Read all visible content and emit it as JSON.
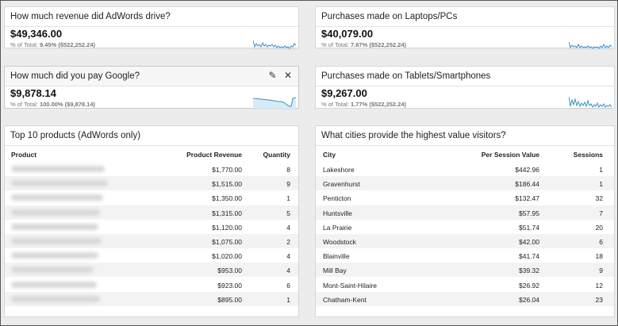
{
  "metrics": [
    {
      "title": "How much revenue did AdWords drive?",
      "value": "$49,346.00",
      "sub_prefix": "% of Total: ",
      "sub_value": "9.45% ($522,252.24)"
    },
    {
      "title": "Purchases made on Laptops/PCs",
      "value": "$40,079.00",
      "sub_prefix": "% of Total: ",
      "sub_value": "7.67% ($522,252.24)"
    },
    {
      "title": "How much did you pay Google?",
      "value": "$9,878.14",
      "sub_prefix": "% of Total: ",
      "sub_value": "100.00% ($9,878.14)",
      "edit_icon": "✎",
      "close_icon": "✕"
    },
    {
      "title": "Purchases made on Tablets/Smartphones",
      "value": "$9,267.00",
      "sub_prefix": "% of Total: ",
      "sub_value": "1.77% ($522,252.24)"
    }
  ],
  "products": {
    "title": "Top 10 products (AdWords only)",
    "headers": {
      "product": "Product",
      "revenue": "Product Revenue",
      "quantity": "Quantity"
    },
    "rows": [
      {
        "revenue": "$1,770.00",
        "quantity": "8"
      },
      {
        "revenue": "$1,515.00",
        "quantity": "9"
      },
      {
        "revenue": "$1,350.00",
        "quantity": "1"
      },
      {
        "revenue": "$1,315.00",
        "quantity": "5"
      },
      {
        "revenue": "$1,120.00",
        "quantity": "4"
      },
      {
        "revenue": "$1,075.00",
        "quantity": "2"
      },
      {
        "revenue": "$1,020.00",
        "quantity": "4"
      },
      {
        "revenue": "$953.00",
        "quantity": "4"
      },
      {
        "revenue": "$923.00",
        "quantity": "6"
      },
      {
        "revenue": "$895.00",
        "quantity": "1"
      }
    ]
  },
  "cities": {
    "title": "What cities provide the highest value visitors?",
    "headers": {
      "city": "City",
      "per_session": "Per Session Value",
      "sessions": "Sessions"
    },
    "rows": [
      {
        "city": "Lakeshore",
        "per_session": "$442.96",
        "sessions": "1"
      },
      {
        "city": "Gravenhurst",
        "per_session": "$186.44",
        "sessions": "1"
      },
      {
        "city": "Penticton",
        "per_session": "$132.47",
        "sessions": "32"
      },
      {
        "city": "Huntsville",
        "per_session": "$57.95",
        "sessions": "7"
      },
      {
        "city": "La Prairie",
        "per_session": "$51.74",
        "sessions": "20"
      },
      {
        "city": "Woodstock",
        "per_session": "$42.00",
        "sessions": "6"
      },
      {
        "city": "Blainville",
        "per_session": "$41.74",
        "sessions": "18"
      },
      {
        "city": "Mill Bay",
        "per_session": "$39.32",
        "sessions": "9"
      },
      {
        "city": "Mont-Saint-Hilaire",
        "per_session": "$26.92",
        "sessions": "12"
      },
      {
        "city": "Chatham-Kent",
        "per_session": "$26.04",
        "sessions": "23"
      }
    ]
  },
  "colors": {
    "sparkline": "#3a8fc9",
    "sparkfill": "#d9ebf7"
  }
}
